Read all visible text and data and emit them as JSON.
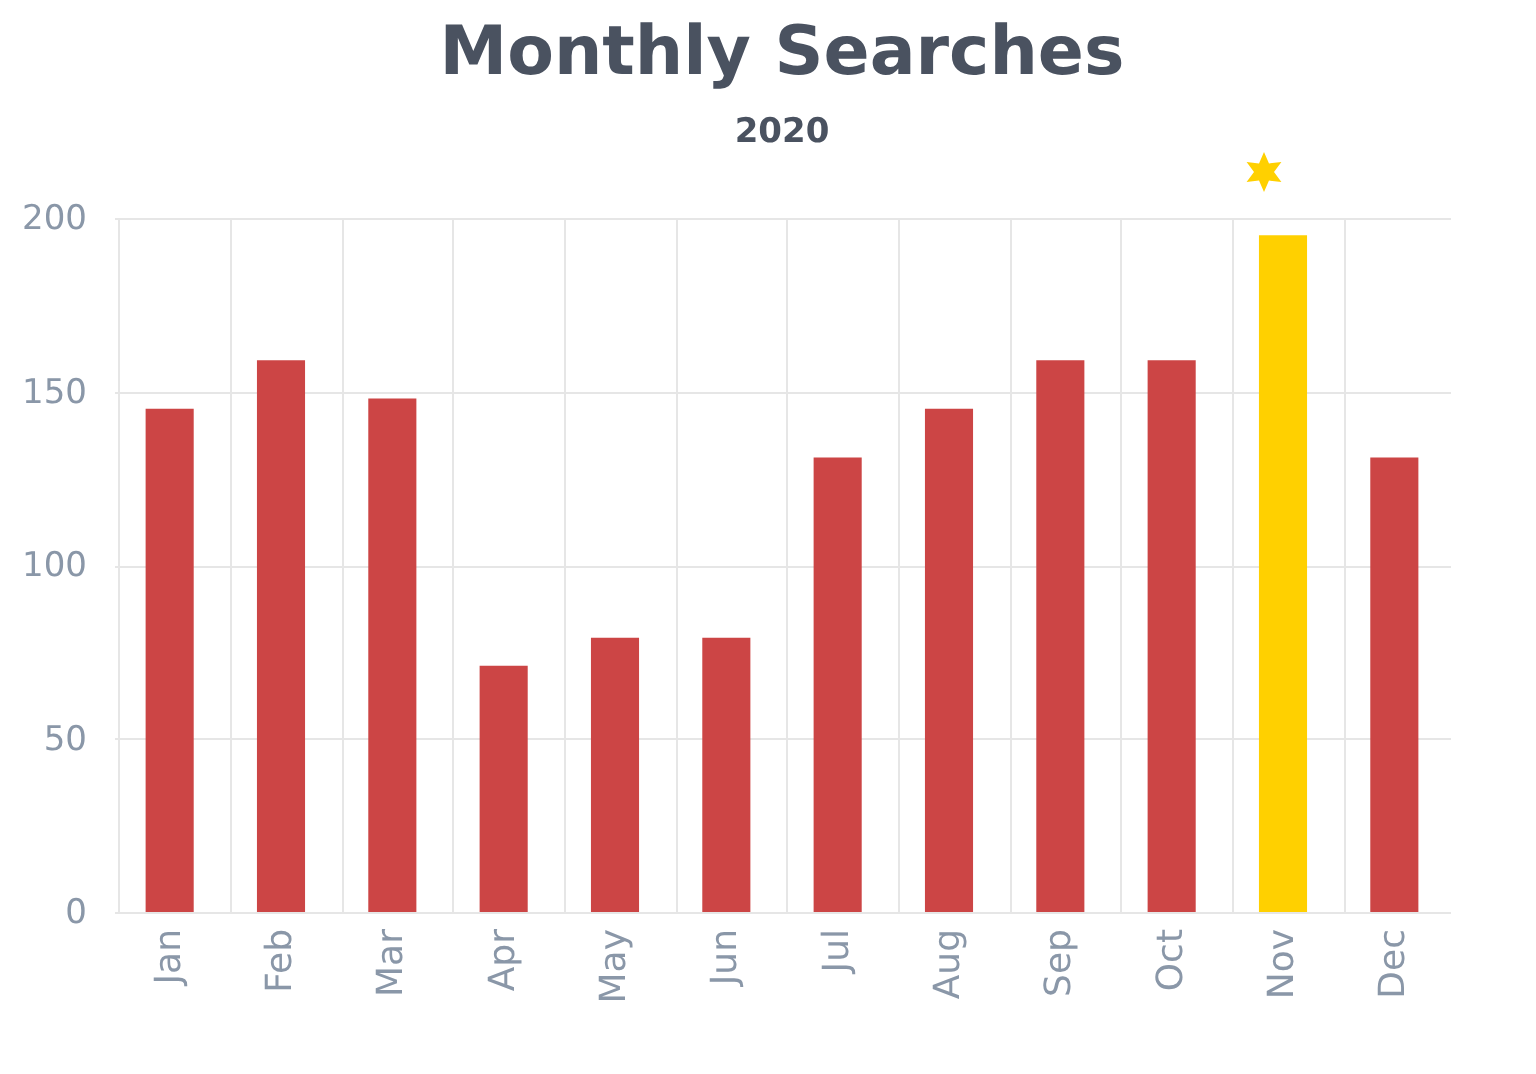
{
  "chart_data": {
    "type": "bar",
    "title": "Monthly Searches",
    "subtitle": "2020",
    "categories": [
      "Jan",
      "Feb",
      "Mar",
      "Apr",
      "May",
      "Jun",
      "Jul",
      "Aug",
      "Sep",
      "Oct",
      "Nov",
      "Dec"
    ],
    "values": [
      145,
      159,
      148,
      71,
      79,
      79,
      131,
      145,
      159,
      159,
      195,
      131
    ],
    "colors": [
      "#cc4545",
      "#cc4545",
      "#cc4545",
      "#cc4545",
      "#cc4545",
      "#cc4545",
      "#cc4545",
      "#cc4545",
      "#cc4545",
      "#cc4545",
      "#ffd000",
      "#cc4545"
    ],
    "ylim": [
      0,
      200
    ],
    "yticks": [
      0,
      50,
      100,
      150,
      200
    ],
    "grid": true
  }
}
